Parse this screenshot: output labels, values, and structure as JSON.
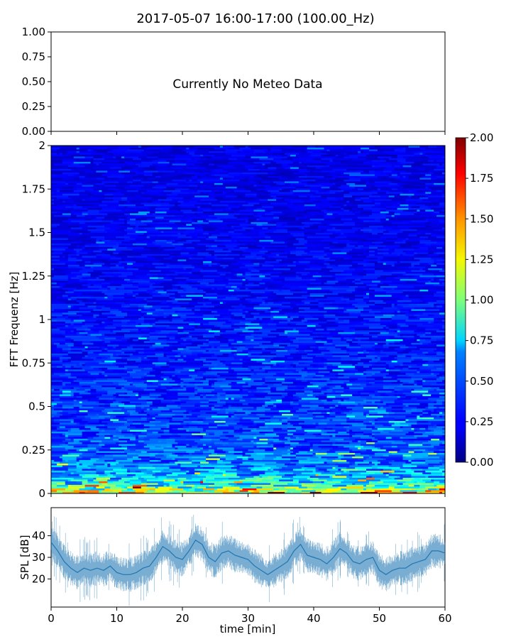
{
  "figure": {
    "title": "2017-05-07 16:00-17:00 (100.00_Hz)"
  },
  "chart_data": [
    {
      "type": "line",
      "panel": "meteo",
      "annotation": "Currently No Meteo Data",
      "ylim": [
        0,
        1
      ],
      "yticks": [
        "0.00",
        "0.25",
        "0.50",
        "0.75",
        "1.00"
      ],
      "xlim": [
        0,
        60
      ],
      "series": []
    },
    {
      "type": "heatmap",
      "panel": "spectrogram",
      "xlabel": "",
      "ylabel": "FFT Frequenz [Hz]",
      "xlim": [
        0,
        60
      ],
      "ylim": [
        0,
        2
      ],
      "yticks": [
        "0",
        "0.25",
        "0.5",
        "0.75",
        "1",
        "1.25",
        "1.5",
        "1.75",
        "2"
      ],
      "colormap": "jet",
      "colorbar": {
        "range": [
          0,
          2
        ],
        "ticks": [
          "0.00",
          "0.25",
          "0.50",
          "0.75",
          "1.00",
          "1.25",
          "1.50",
          "1.75",
          "2.00"
        ]
      },
      "value_profile": {
        "frequency_hz": [
          0.0,
          0.05,
          0.1,
          0.2,
          0.3,
          0.5,
          0.75,
          1.0,
          1.5,
          2.0
        ],
        "typical_value": [
          1.3,
          0.8,
          0.6,
          0.45,
          0.4,
          0.35,
          0.3,
          0.27,
          0.22,
          0.2
        ]
      }
    },
    {
      "type": "line",
      "panel": "spl",
      "xlabel": "time [min]",
      "ylabel": "SPL [dB]",
      "xlim": [
        0,
        60
      ],
      "ylim": [
        7,
        53
      ],
      "xticks": [
        "0",
        "10",
        "20",
        "30",
        "40",
        "50",
        "60"
      ],
      "yticks": [
        "20",
        "30",
        "40"
      ],
      "series": [
        {
          "color": "#1f77b4",
          "x": [
            0,
            1,
            2,
            3,
            4,
            5,
            6,
            7,
            8,
            9,
            10,
            11,
            12,
            13,
            14,
            15,
            16,
            17,
            18,
            19,
            20,
            21,
            22,
            23,
            24,
            25,
            26,
            27,
            28,
            29,
            30,
            31,
            32,
            33,
            34,
            35,
            36,
            37,
            38,
            39,
            40,
            41,
            42,
            43,
            44,
            45,
            46,
            47,
            48,
            49,
            50,
            51,
            52,
            53,
            54,
            55,
            56,
            57,
            58,
            59,
            60
          ],
          "y": [
            37,
            33,
            28,
            25,
            23,
            25,
            24,
            25,
            24,
            26,
            23,
            22,
            22,
            23,
            25,
            26,
            30,
            35,
            33,
            30,
            29,
            33,
            38,
            36,
            30,
            28,
            32,
            33,
            31,
            30,
            29,
            26,
            24,
            22,
            24,
            26,
            28,
            33,
            36,
            31,
            30,
            29,
            27,
            30,
            34,
            32,
            28,
            27,
            29,
            30,
            24,
            22,
            24,
            25,
            25,
            27,
            28,
            29,
            33,
            33,
            32
          ]
        }
      ]
    }
  ]
}
